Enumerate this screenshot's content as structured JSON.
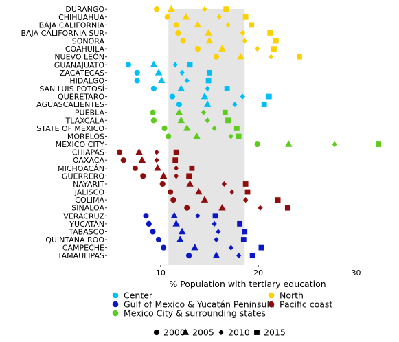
{
  "chart_data": {
    "type": "scatter",
    "title": "",
    "xlabel": "% Population with tertiary education",
    "ylabel": "",
    "xlim": [
      4.6,
      33.2
    ],
    "xticks": [
      10,
      20,
      30
    ],
    "highlight_band": [
      10.8,
      18.6
    ],
    "grid": false,
    "legend_position": "bottom",
    "years": [
      "2000",
      "2005",
      "2010",
      "2015"
    ],
    "year_shapes": {
      "2000": "circle",
      "2005": "triangle",
      "2010": "diamond",
      "2015": "square"
    },
    "regions": [
      {
        "name": "Center",
        "color": "#00bff5"
      },
      {
        "name": "North",
        "color": "#fbd100"
      },
      {
        "name": "Gulf of Mexico & Yucatán Peninsula",
        "color": "#0a17c4"
      },
      {
        "name": "Pacific coast",
        "color": "#8f0d0d"
      },
      {
        "name": "Mexico City & surrounding states",
        "color": "#5dcc1e"
      }
    ],
    "states": [
      {
        "name": "DURANGO",
        "region": "North",
        "values": [
          9.6,
          11.1,
          14.5,
          16.7
        ]
      },
      {
        "name": "CHIHUAHUA",
        "region": "North",
        "values": [
          10.7,
          12.6,
          16.0,
          18.7
        ]
      },
      {
        "name": "BAJA CALIFORNIA",
        "region": "North",
        "values": [
          11.6,
          13.8,
          16.9,
          19.3
        ]
      },
      {
        "name": "BAJA CALIFORNIA SUR",
        "region": "North",
        "values": [
          11.8,
          14.9,
          18.4,
          21.2
        ]
      },
      {
        "name": "SONORA",
        "region": "North",
        "values": [
          12.3,
          15.0,
          18.6,
          21.8
        ]
      },
      {
        "name": "COAHUILA",
        "region": "North",
        "values": [
          13.8,
          16.3,
          19.9,
          21.6
        ]
      },
      {
        "name": "NUEVO LEÓN",
        "region": "North",
        "values": [
          15.7,
          18.2,
          21.3,
          24.2
        ]
      },
      {
        "name": "GUANAJUATO",
        "region": "Center",
        "values": [
          6.7,
          9.3,
          11.5,
          13.0
        ]
      },
      {
        "name": "ZACATECAS",
        "region": "Center",
        "values": [
          7.6,
          9.8,
          12.2,
          15.0
        ]
      },
      {
        "name": "HIDALGO",
        "region": "Center",
        "values": [
          7.6,
          10.1,
          12.7,
          14.9
        ]
      },
      {
        "name": "SAN LUIS POTOSÍ",
        "region": "Center",
        "values": [
          9.3,
          12.1,
          14.8,
          16.8
        ]
      },
      {
        "name": "QUERÉTARO",
        "region": "Center",
        "values": [
          11.2,
          14.5,
          18.4,
          21.1
        ]
      },
      {
        "name": "AGUASCALIENTES",
        "region": "Center",
        "values": [
          11.9,
          14.8,
          17.6,
          20.6
        ]
      },
      {
        "name": "PUEBLA",
        "region": "Mexico City & surrounding states",
        "values": [
          9.2,
          11.9,
          14.4,
          16.6
        ]
      },
      {
        "name": "TLAXCALA",
        "region": "Mexico City & surrounding states",
        "values": [
          9.3,
          12.1,
          14.8,
          16.9
        ]
      },
      {
        "name": "STATE OF MEXICO",
        "region": "Mexico City & surrounding states",
        "values": [
          10.4,
          12.7,
          15.5,
          17.8
        ]
      },
      {
        "name": "MORELOS",
        "region": "Mexico City & surrounding states",
        "values": [
          10.8,
          13.7,
          17.2,
          18.0
        ]
      },
      {
        "name": "MEXICO CITY",
        "region": "Mexico City & surrounding states",
        "values": [
          19.9,
          23.1,
          27.8,
          32.3
        ]
      },
      {
        "name": "CHIAPAS",
        "region": "Pacific coast",
        "values": [
          5.8,
          7.8,
          9.6,
          11.6
        ]
      },
      {
        "name": "OAXACA",
        "region": "Pacific coast",
        "values": [
          6.2,
          8.1,
          9.6,
          11.5
        ]
      },
      {
        "name": "MICHOACÁN",
        "region": "Pacific coast",
        "values": [
          7.4,
          9.7,
          11.6,
          13.2
        ]
      },
      {
        "name": "GUERRERO",
        "region": "Pacific coast",
        "values": [
          8.2,
          10.3,
          11.6,
          12.9
        ]
      },
      {
        "name": "NAYARIT",
        "region": "Pacific coast",
        "values": [
          10.2,
          13.0,
          16.5,
          18.7
        ]
      },
      {
        "name": "JALISCO",
        "region": "Pacific coast",
        "values": [
          11.0,
          13.9,
          17.3,
          18.9
        ]
      },
      {
        "name": "COLIMA",
        "region": "Pacific coast",
        "values": [
          11.3,
          14.5,
          18.7,
          22.0
        ]
      },
      {
        "name": "SINALOA",
        "region": "Pacific coast",
        "values": [
          12.7,
          16.3,
          20.2,
          23.0
        ]
      },
      {
        "name": "VERACRUZ",
        "region": "Gulf of Mexico & Yucatán Peninsula",
        "values": [
          8.5,
          11.4,
          13.8,
          15.6
        ]
      },
      {
        "name": "YUCATÁN",
        "region": "Gulf of Mexico & Yucatán Peninsula",
        "values": [
          8.8,
          11.6,
          15.5,
          18.1
        ]
      },
      {
        "name": "TABASCO",
        "region": "Gulf of Mexico & Yucatán Peninsula",
        "values": [
          9.2,
          12.2,
          15.9,
          18.6
        ]
      },
      {
        "name": "QUINTANA ROO",
        "region": "Gulf of Mexico & Yucatán Peninsula",
        "values": [
          9.8,
          12.0,
          15.7,
          18.5
        ]
      },
      {
        "name": "CAMPECHE",
        "region": "Gulf of Mexico & Yucatán Peninsula",
        "values": [
          10.3,
          13.5,
          17.2,
          20.3
        ]
      },
      {
        "name": "TAMAULIPAS",
        "region": "Gulf of Mexico & Yucatán Peninsula",
        "values": [
          12.9,
          15.7,
          18.0,
          19.4
        ]
      }
    ]
  }
}
